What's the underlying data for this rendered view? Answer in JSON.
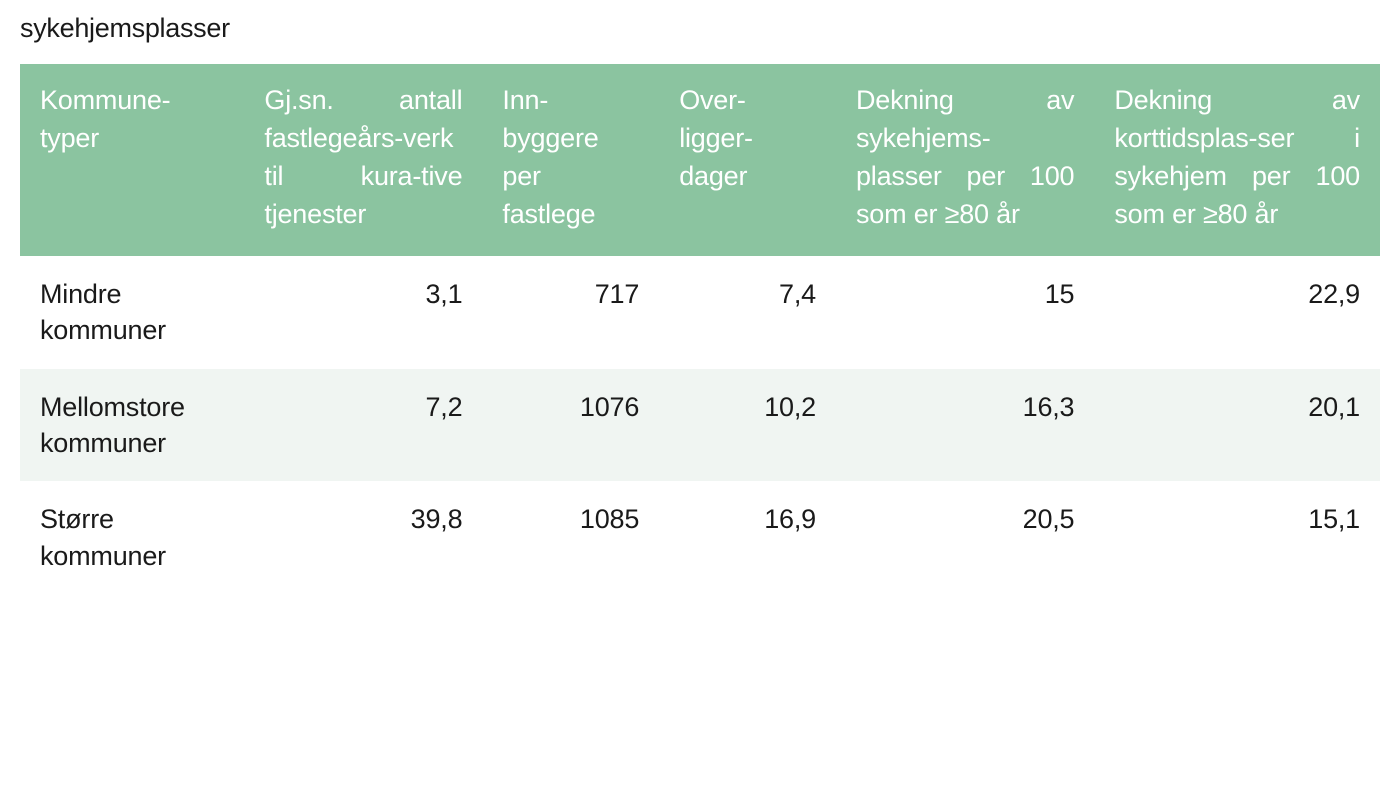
{
  "caption": "sykehjemsplasser",
  "table": {
    "type": "table",
    "header_bg": "#8bc4a0",
    "header_text_color": "#ffffff",
    "row_odd_bg": "#ffffff",
    "row_even_bg": "#f0f5f2",
    "text_color": "#1a1a1a",
    "columns": [
      "Kommune-typer",
      "Gj.sn. antall fastlegeårs-verk til kura-tive tjenester",
      "Inn-byggere per fastlege",
      "Over-ligger-dager",
      "Dekning av sykehjems-plasser per 100 som er ≥80 år",
      "Dekning av korttidsplas-ser i sykehjem per 100 som er ≥80 år"
    ],
    "column_align": [
      "left",
      "right",
      "right",
      "right",
      "right",
      "right"
    ],
    "rows": [
      {
        "label": "Mindre kommuner",
        "c1": "3,1",
        "c2": "717",
        "c3": "7,4",
        "c4": "15",
        "c5": "22,9"
      },
      {
        "label": "Mellomstore kommuner",
        "c1": "7,2",
        "c2": "1076",
        "c3": "10,2",
        "c4": "16,3",
        "c5": "20,1"
      },
      {
        "label": "Større kommuner",
        "c1": "39,8",
        "c2": "1085",
        "c3": "16,9",
        "c4": "20,5",
        "c5": "15,1"
      }
    ]
  }
}
